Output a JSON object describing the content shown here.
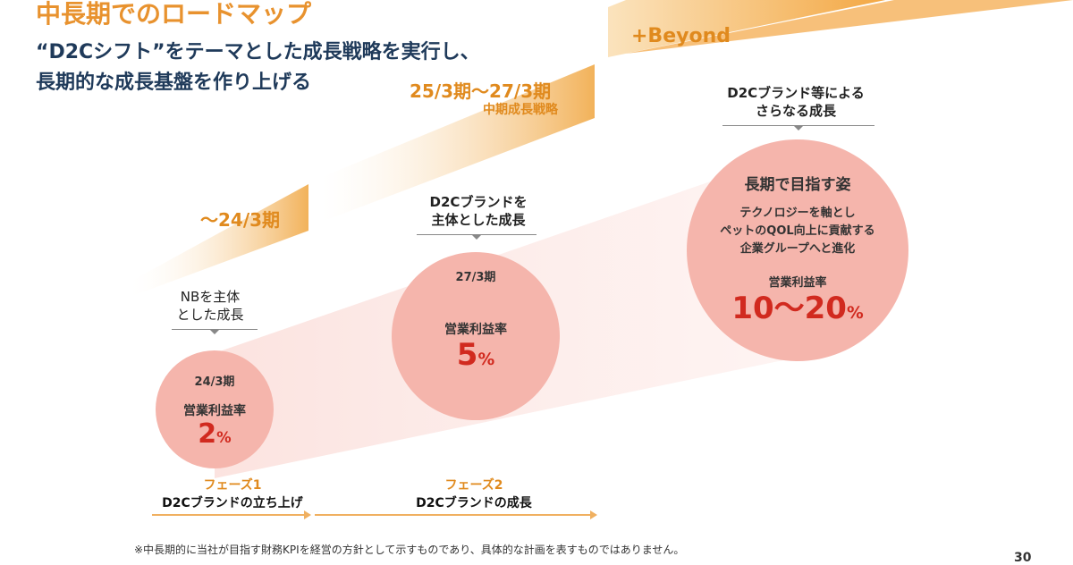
{
  "title": "中長期でのロードマップ",
  "subtitle": {
    "line1": "“D2Cシフト”をテーマとした成長戦略を実行し、",
    "line2": "長期的な成長基盤を作り上げる"
  },
  "roadmap": {
    "steps": [
      {
        "period": "～24/3期",
        "sub": ""
      },
      {
        "period": "25/3期～27/3期",
        "sub": "中期成長戦略"
      },
      {
        "period": "+Beyond",
        "sub": ""
      }
    ]
  },
  "stages": [
    {
      "caption_line1": "NBを主体",
      "caption_line2": "とした成長",
      "period": "24/3期",
      "metric_label": "営業利益率",
      "value": "2",
      "unit": "%"
    },
    {
      "caption_line1": "D2Cブランドを",
      "caption_line2": "主体とした成長",
      "period": "27/3期",
      "metric_label": "営業利益率",
      "value": "5",
      "unit": "%"
    },
    {
      "caption_line1": "D2Cブランド等による",
      "caption_line2": "さらなる成長",
      "heading": "長期で目指す姿",
      "desc_line1": "テクノロジーを軸とし",
      "desc_line2": "ペットのQOL向上に貢献する",
      "desc_line3": "企業グループへと進化",
      "metric_label": "営業利益率",
      "value": "10～20",
      "unit": "%"
    }
  ],
  "phases": [
    {
      "label": "フェーズ1",
      "desc": "D2Cブランドの立ち上げ"
    },
    {
      "label": "フェーズ2",
      "desc": "D2Cブランドの成長"
    }
  ],
  "footnote": "※中長期的に当社が目指す財務KPIを経営の方針として示すものであり、具体的な計画を表すものではありません。",
  "page_number": "30",
  "colors": {
    "orange": "#e8922e",
    "navy": "#1f3a5a",
    "circle": "#f5b5ac",
    "red": "#d12a1f"
  }
}
